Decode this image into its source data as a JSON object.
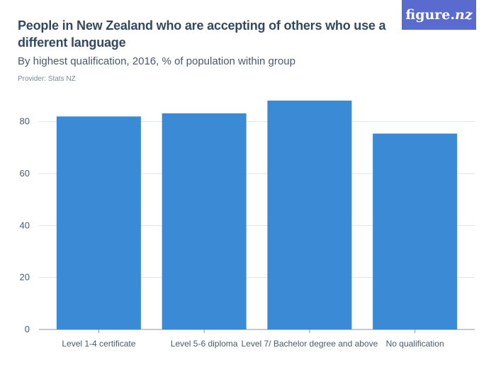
{
  "header": {
    "title": "People in New Zealand who are accepting of others who use a different language",
    "subtitle": "By highest qualification, 2016, % of population within group",
    "provider": "Provider: Stats NZ"
  },
  "logo": {
    "text_main": "figure.",
    "text_nz": "nz",
    "color": "#5a6bd0"
  },
  "chart_data": {
    "type": "bar",
    "categories": [
      "Level 1-4 certificate",
      "Level 5-6 diploma",
      "Level 7/ Bachelor degree and above",
      "No qualification"
    ],
    "values": [
      82,
      83.2,
      88.1,
      75.4
    ],
    "ylim": [
      0,
      90
    ],
    "yticks": [
      0,
      20,
      40,
      60,
      80
    ],
    "bar_color": "#3a8ad6",
    "grid": true
  }
}
